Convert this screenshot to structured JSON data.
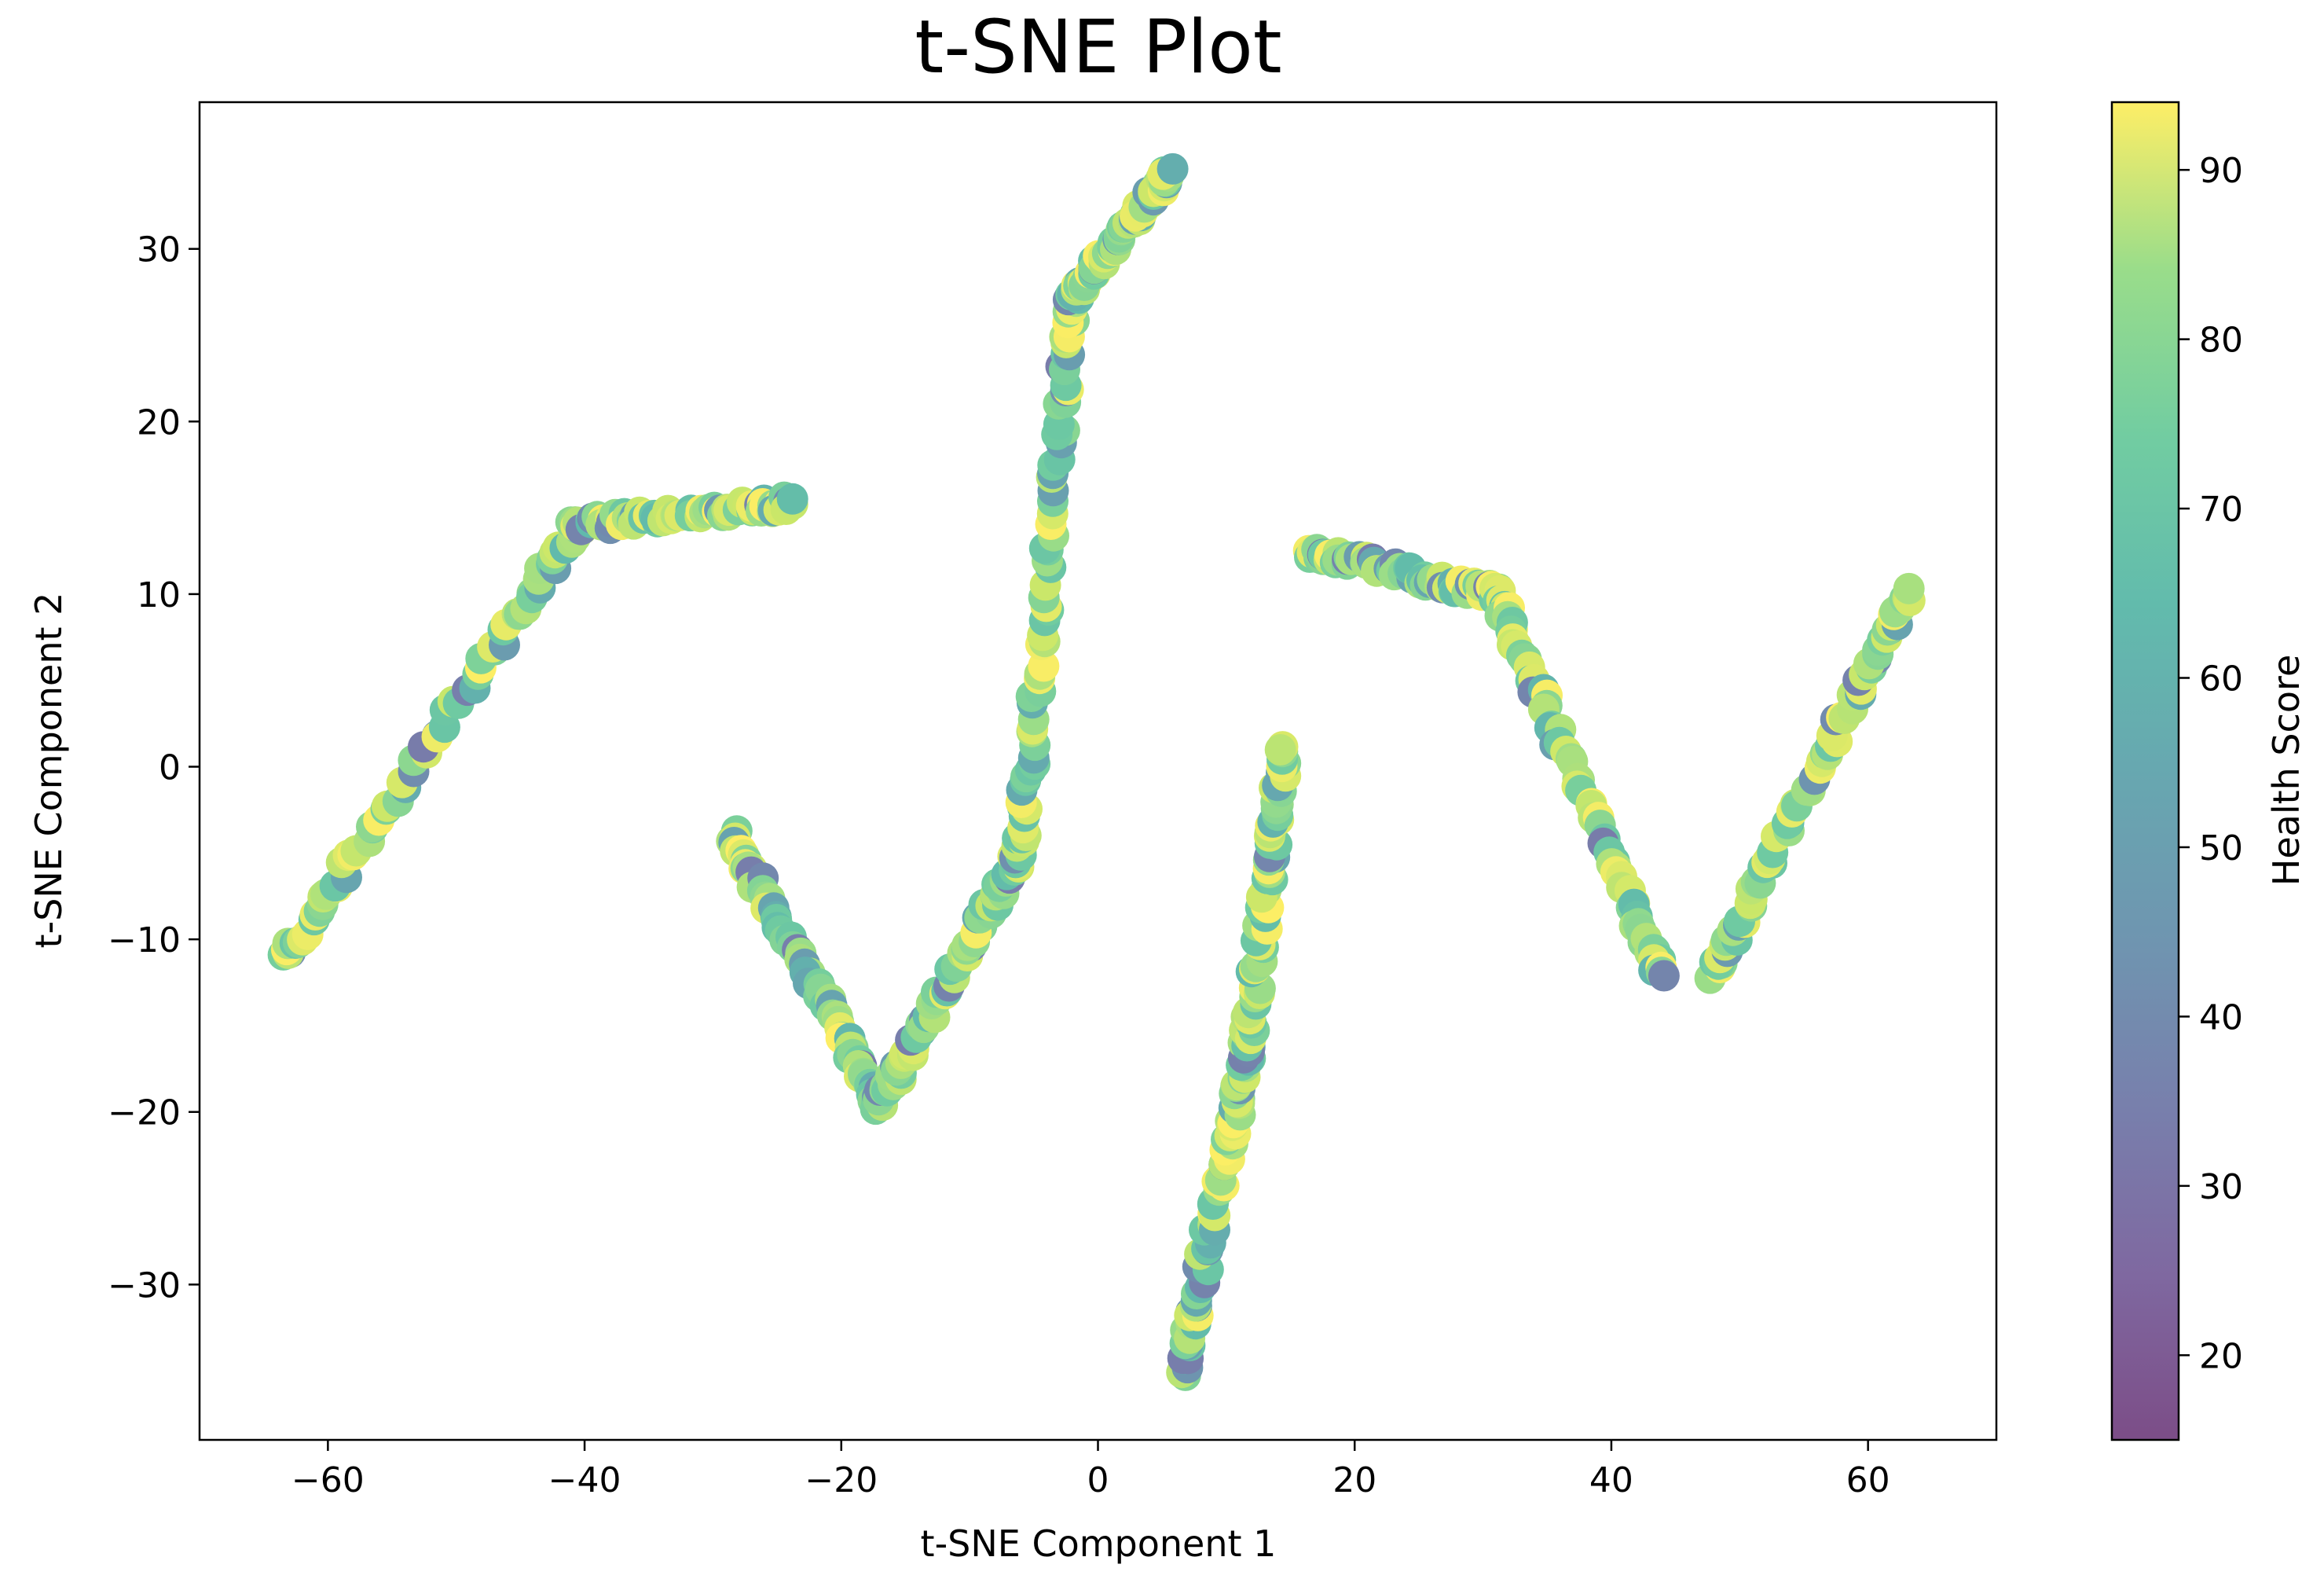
{
  "chart_data": {
    "type": "scatter",
    "title": "t-SNE Plot",
    "xlabel": "t-SNE Component 1",
    "ylabel": "t-SNE Component 2",
    "xlim": [
      -70,
      70
    ],
    "ylim": [
      -39,
      38.5
    ],
    "xticks": [
      -60,
      -40,
      -20,
      0,
      20,
      40,
      60
    ],
    "xtick_labels": [
      "−60",
      "−40",
      "−20",
      "0",
      "20",
      "40",
      "60"
    ],
    "yticks": [
      -30,
      -20,
      -10,
      0,
      10,
      20,
      30
    ],
    "ytick_labels": [
      "−30",
      "−20",
      "−10",
      "0",
      "10",
      "20",
      "30"
    ],
    "grid": false,
    "legend": "none",
    "colormap": "viridis",
    "marker_alpha": 0.7,
    "colorbar": {
      "label": "Health Score",
      "range": [
        15,
        94
      ],
      "ticks": [
        20,
        30,
        40,
        50,
        60,
        70,
        80,
        90
      ],
      "tick_labels": [
        "20",
        "30",
        "40",
        "50",
        "60",
        "70",
        "80",
        "90"
      ]
    },
    "point_count_per_segment": 70,
    "segments": [
      {
        "start": [
          -63.5,
          -11.3
        ],
        "end": [
          -40.5,
          14.0
        ],
        "coverage": 0.8
      },
      {
        "start": [
          -40.5,
          14.0
        ],
        "end": [
          -24.0,
          15.3
        ],
        "coverage": 0.75
      },
      {
        "start": [
          -28.5,
          -4.0
        ],
        "end": [
          -17.0,
          -19.5
        ],
        "coverage": 0.78
      },
      {
        "start": [
          -17.0,
          -19.5
        ],
        "end": [
          -6.0,
          -5.0
        ],
        "coverage": 0.76
      },
      {
        "start": [
          -6.0,
          -5.0
        ],
        "end": [
          -2.0,
          27.0
        ],
        "coverage": 0.8
      },
      {
        "start": [
          -2.0,
          27.0
        ],
        "end": [
          5.5,
          34.5
        ],
        "coverage": 0.72
      },
      {
        "start": [
          6.5,
          -35.0
        ],
        "end": [
          11.5,
          -17.0
        ],
        "coverage": 0.77
      },
      {
        "start": [
          11.5,
          -17.0
        ],
        "end": [
          14.5,
          1.0
        ],
        "coverage": 0.82
      },
      {
        "start": [
          16.5,
          12.5
        ],
        "end": [
          31.0,
          10.0
        ],
        "coverage": 0.75
      },
      {
        "start": [
          31.0,
          10.0
        ],
        "end": [
          44.0,
          -12.0
        ],
        "coverage": 0.8
      },
      {
        "start": [
          48.0,
          -12.0
        ],
        "end": [
          63.0,
          10.0
        ],
        "coverage": 0.78
      }
    ]
  }
}
